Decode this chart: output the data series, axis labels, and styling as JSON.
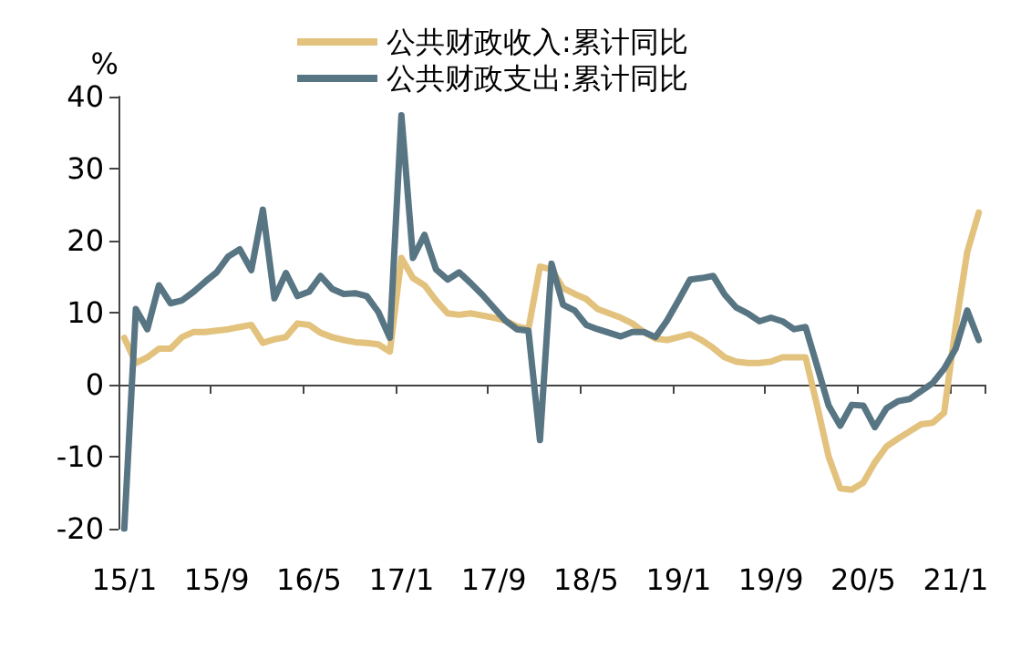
{
  "chart_data": {
    "type": "line",
    "ylabel": "%",
    "categories": [
      "15/1",
      null,
      null,
      null,
      null,
      null,
      null,
      null,
      "15/9",
      null,
      null,
      null,
      null,
      null,
      null,
      null,
      "16/5",
      null,
      null,
      null,
      null,
      null,
      null,
      null,
      "17/1",
      null,
      null,
      null,
      null,
      null,
      null,
      null,
      "17/9",
      null,
      null,
      null,
      null,
      null,
      null,
      null,
      "18/5",
      null,
      null,
      null,
      null,
      null,
      null,
      null,
      "19/1",
      null,
      null,
      null,
      null,
      null,
      null,
      null,
      "19/9",
      null,
      null,
      null,
      null,
      null,
      null,
      null,
      "20/5",
      null,
      null,
      null,
      null,
      null,
      null,
      null,
      "21/1",
      null,
      null
    ],
    "series": [
      {
        "name": "公共财政收入:累计同比",
        "color": "#e2c27d",
        "values": [
          6.5,
          3,
          3.8,
          5,
          5,
          6.6,
          7.3,
          7.3,
          7.5,
          7.7,
          8,
          8.3,
          5.8,
          6.3,
          6.6,
          8.5,
          8.3,
          7.2,
          6.6,
          6.2,
          5.9,
          5.8,
          5.6,
          4.6,
          17.6,
          14.8,
          13.8,
          11.7,
          9.9,
          9.7,
          9.9,
          9.6,
          9.3,
          8.9,
          8.1,
          7.7,
          16.4,
          16,
          13.4,
          12.6,
          11.9,
          10.5,
          9.9,
          9.3,
          8.5,
          7.3,
          6.4,
          6.2,
          6.6,
          7,
          6.2,
          5.1,
          3.8,
          3.2,
          3,
          3,
          3.2,
          3.8,
          3.8,
          3.8,
          -2.9,
          -10,
          -14.4,
          -14.6,
          -13.6,
          -10.8,
          -8.6,
          -7.5,
          -6.5,
          -5.5,
          -5.3,
          -3.9,
          8.1,
          18.4,
          23.9
        ]
      },
      {
        "name": "公共财政支出:累计同比",
        "color": "#587583",
        "values": [
          -20,
          10.5,
          7.7,
          13.8,
          11.3,
          11.7,
          12.9,
          14.3,
          15.6,
          17.8,
          18.8,
          15.9,
          24.3,
          12,
          15.5,
          12.3,
          12.9,
          15.1,
          13.3,
          12.6,
          12.7,
          12.3,
          10.1,
          6.5,
          37.4,
          17.6,
          20.8,
          16,
          14.6,
          15.6,
          14.1,
          12.5,
          10.7,
          8.9,
          7.7,
          7.5,
          -7.7,
          16.8,
          11.1,
          10.3,
          8.3,
          7.7,
          7.2,
          6.7,
          7.3,
          7.3,
          6.6,
          8.9,
          11.7,
          14.6,
          14.8,
          15.1,
          12.5,
          10.7,
          9.9,
          8.8,
          9.3,
          8.8,
          7.7,
          8,
          2.6,
          -2.9,
          -5.7,
          -2.8,
          -2.9,
          -5.9,
          -3.3,
          -2.3,
          -2,
          -0.9,
          0.2,
          2.2,
          5,
          10.3,
          6.2
        ]
      }
    ],
    "ylim": [
      -20,
      40
    ],
    "yticks": [
      -20,
      -10,
      0,
      10,
      20,
      30,
      40
    ],
    "legend": "top",
    "line_style": "solid"
  }
}
